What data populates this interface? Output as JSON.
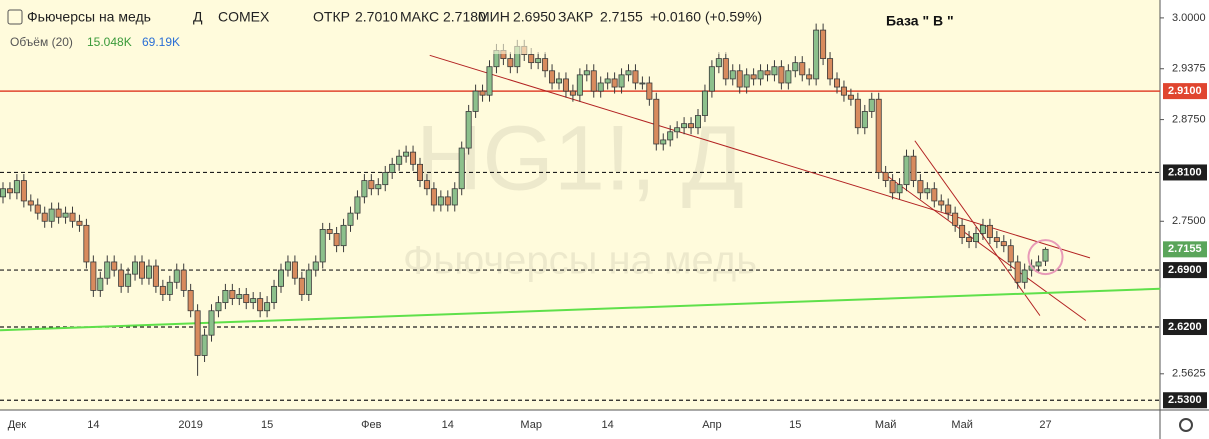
{
  "header": {
    "interval": "Д",
    "exchange": "COMEX",
    "open_label": "ОТКР",
    "open": "2.7010",
    "high_label": "МАКС",
    "high": "2.7180",
    "low_label": "МИН",
    "low": "2.6950",
    "close_label": "ЗАКР",
    "close": "2.7155",
    "change": "+0.0160 (+0.59%)",
    "volume_label": "Объём (20)",
    "volume": "15.048K",
    "volume_ma": "69.19K"
  },
  "chart_data": {
    "type": "candlestick",
    "title": "Фьючерсы на медь",
    "watermark": "HG1!, Д",
    "annotation": "База \" В \"",
    "categories": [
      null,
      null,
      "Дек",
      null,
      null,
      null,
      null,
      null,
      null,
      null,
      null,
      null,
      null,
      "14",
      null,
      null,
      null,
      null,
      null,
      null,
      null,
      null,
      null,
      null,
      null,
      null,
      null,
      "2019",
      null,
      null,
      null,
      null,
      null,
      null,
      null,
      null,
      null,
      null,
      "15",
      null,
      null,
      null,
      null,
      null,
      null,
      null,
      null,
      null,
      null,
      null,
      null,
      null,
      null,
      "Фев",
      null,
      null,
      null,
      null,
      null,
      null,
      null,
      null,
      null,
      null,
      "14",
      null,
      null,
      null,
      null,
      null,
      null,
      null,
      null,
      null,
      null,
      null,
      "Мар",
      null,
      null,
      null,
      null,
      null,
      null,
      null,
      null,
      null,
      null,
      "14",
      null,
      null,
      null,
      null,
      null,
      null,
      null,
      null,
      null,
      null,
      null,
      null,
      null,
      null,
      "Апр",
      null,
      null,
      null,
      null,
      null,
      null,
      null,
      null,
      null,
      null,
      null,
      "15",
      null,
      null,
      null,
      null,
      null,
      null,
      null,
      null,
      null,
      null,
      null,
      null,
      "Май",
      null,
      null,
      null,
      null,
      null,
      null,
      null,
      null,
      null,
      null,
      "Май",
      null,
      null,
      null,
      null,
      null,
      null,
      null,
      null,
      null,
      null,
      null,
      "27"
    ],
    "open": [
      2.78,
      2.79,
      2.785,
      2.8,
      2.775,
      2.77,
      2.76,
      2.75,
      2.765,
      2.755,
      2.76,
      2.75,
      2.745,
      2.7,
      2.665,
      2.68,
      2.7,
      2.69,
      2.67,
      2.685,
      2.7,
      2.68,
      2.695,
      2.67,
      2.66,
      2.675,
      2.69,
      2.665,
      2.64,
      2.585,
      2.61,
      2.64,
      2.65,
      2.665,
      2.655,
      2.66,
      2.65,
      2.655,
      2.64,
      2.65,
      2.67,
      2.69,
      2.7,
      2.68,
      2.66,
      2.69,
      2.7,
      2.74,
      2.735,
      2.72,
      2.745,
      2.76,
      2.78,
      2.8,
      2.79,
      2.795,
      2.81,
      2.82,
      2.83,
      2.835,
      2.82,
      2.8,
      2.79,
      2.77,
      2.78,
      2.77,
      2.79,
      2.84,
      2.885,
      2.91,
      2.905,
      2.94,
      2.96,
      2.95,
      2.94,
      2.965,
      2.955,
      2.945,
      2.95,
      2.935,
      2.92,
      2.925,
      2.91,
      2.905,
      2.93,
      2.935,
      2.91,
      2.92,
      2.925,
      2.915,
      2.93,
      2.935,
      2.92,
      2.92,
      2.9,
      2.845,
      2.85,
      2.86,
      2.865,
      2.87,
      2.865,
      2.88,
      2.91,
      2.94,
      2.95,
      2.925,
      2.935,
      2.915,
      2.93,
      2.925,
      2.935,
      2.93,
      2.94,
      2.92,
      2.935,
      2.945,
      2.93,
      2.925,
      2.985,
      2.95,
      2.925,
      2.915,
      2.905,
      2.9,
      2.865,
      2.885,
      2.9,
      2.81,
      2.8,
      2.785,
      2.795,
      2.83,
      2.8,
      2.785,
      2.79,
      2.775,
      2.77,
      2.76,
      2.745,
      2.73,
      2.725,
      2.735,
      2.745,
      2.73,
      2.725,
      2.72,
      2.7,
      2.675,
      2.69,
      2.695,
      2.701
    ],
    "high": [
      2.798,
      2.798,
      2.808,
      2.808,
      2.783,
      2.778,
      2.768,
      2.773,
      2.773,
      2.768,
      2.768,
      2.758,
      2.753,
      2.708,
      2.688,
      2.708,
      2.708,
      2.698,
      2.693,
      2.708,
      2.708,
      2.703,
      2.703,
      2.678,
      2.683,
      2.698,
      2.698,
      2.673,
      2.648,
      2.618,
      2.648,
      2.658,
      2.673,
      2.673,
      2.668,
      2.668,
      2.663,
      2.663,
      2.658,
      2.678,
      2.698,
      2.708,
      2.708,
      2.688,
      2.698,
      2.708,
      2.748,
      2.748,
      2.743,
      2.753,
      2.768,
      2.788,
      2.808,
      2.808,
      2.803,
      2.818,
      2.828,
      2.838,
      2.843,
      2.843,
      2.828,
      2.808,
      2.798,
      2.788,
      2.788,
      2.798,
      2.848,
      2.893,
      2.918,
      2.918,
      2.948,
      2.968,
      2.968,
      2.958,
      2.973,
      2.973,
      2.963,
      2.958,
      2.958,
      2.943,
      2.933,
      2.933,
      2.918,
      2.938,
      2.943,
      2.943,
      2.928,
      2.933,
      2.933,
      2.938,
      2.943,
      2.943,
      2.928,
      2.928,
      2.908,
      2.858,
      2.868,
      2.873,
      2.878,
      2.878,
      2.888,
      2.918,
      2.948,
      2.958,
      2.958,
      2.943,
      2.943,
      2.938,
      2.938,
      2.943,
      2.943,
      2.948,
      2.948,
      2.943,
      2.953,
      2.953,
      2.938,
      2.993,
      2.993,
      2.958,
      2.933,
      2.923,
      2.913,
      2.908,
      2.893,
      2.908,
      2.908,
      2.818,
      2.808,
      2.803,
      2.838,
      2.838,
      2.808,
      2.798,
      2.798,
      2.783,
      2.778,
      2.768,
      2.753,
      2.738,
      2.743,
      2.753,
      2.753,
      2.738,
      2.733,
      2.728,
      2.708,
      2.698,
      2.703,
      2.708,
      2.718
    ],
    "low": [
      2.772,
      2.777,
      2.777,
      2.767,
      2.762,
      2.752,
      2.742,
      2.742,
      2.747,
      2.747,
      2.742,
      2.737,
      2.692,
      2.657,
      2.657,
      2.672,
      2.682,
      2.662,
      2.662,
      2.677,
      2.672,
      2.672,
      2.662,
      2.652,
      2.652,
      2.667,
      2.657,
      2.632,
      2.56,
      2.577,
      2.602,
      2.632,
      2.642,
      2.647,
      2.647,
      2.642,
      2.642,
      2.632,
      2.632,
      2.642,
      2.662,
      2.682,
      2.672,
      2.652,
      2.652,
      2.682,
      2.692,
      2.727,
      2.712,
      2.712,
      2.737,
      2.752,
      2.772,
      2.782,
      2.782,
      2.787,
      2.802,
      2.812,
      2.822,
      2.812,
      2.792,
      2.782,
      2.762,
      2.762,
      2.762,
      2.762,
      2.782,
      2.832,
      2.877,
      2.897,
      2.897,
      2.932,
      2.942,
      2.932,
      2.932,
      2.947,
      2.937,
      2.937,
      2.927,
      2.912,
      2.912,
      2.902,
      2.897,
      2.897,
      2.922,
      2.902,
      2.902,
      2.912,
      2.907,
      2.907,
      2.922,
      2.912,
      2.912,
      2.892,
      2.837,
      2.837,
      2.842,
      2.852,
      2.857,
      2.857,
      2.857,
      2.872,
      2.902,
      2.932,
      2.917,
      2.917,
      2.907,
      2.907,
      2.917,
      2.917,
      2.922,
      2.922,
      2.912,
      2.912,
      2.927,
      2.922,
      2.917,
      2.917,
      2.942,
      2.917,
      2.907,
      2.897,
      2.892,
      2.857,
      2.857,
      2.877,
      2.802,
      2.792,
      2.777,
      2.777,
      2.787,
      2.792,
      2.777,
      2.777,
      2.767,
      2.762,
      2.752,
      2.737,
      2.722,
      2.717,
      2.717,
      2.727,
      2.722,
      2.717,
      2.712,
      2.692,
      2.667,
      2.667,
      2.682,
      2.687,
      2.695
    ],
    "close": [
      2.79,
      2.785,
      2.8,
      2.775,
      2.77,
      2.76,
      2.75,
      2.765,
      2.755,
      2.76,
      2.75,
      2.745,
      2.7,
      2.665,
      2.68,
      2.7,
      2.69,
      2.67,
      2.685,
      2.7,
      2.68,
      2.695,
      2.67,
      2.66,
      2.675,
      2.69,
      2.665,
      2.64,
      2.585,
      2.61,
      2.64,
      2.65,
      2.665,
      2.655,
      2.66,
      2.65,
      2.655,
      2.64,
      2.65,
      2.67,
      2.69,
      2.7,
      2.68,
      2.66,
      2.69,
      2.7,
      2.74,
      2.735,
      2.72,
      2.745,
      2.76,
      2.78,
      2.8,
      2.79,
      2.795,
      2.81,
      2.82,
      2.83,
      2.835,
      2.82,
      2.8,
      2.79,
      2.77,
      2.78,
      2.77,
      2.79,
      2.84,
      2.885,
      2.91,
      2.905,
      2.94,
      2.96,
      2.95,
      2.94,
      2.965,
      2.955,
      2.945,
      2.95,
      2.935,
      2.92,
      2.925,
      2.91,
      2.905,
      2.93,
      2.935,
      2.91,
      2.92,
      2.925,
      2.915,
      2.93,
      2.935,
      2.92,
      2.92,
      2.9,
      2.845,
      2.85,
      2.86,
      2.865,
      2.87,
      2.865,
      2.88,
      2.91,
      2.94,
      2.95,
      2.925,
      2.935,
      2.915,
      2.93,
      2.925,
      2.935,
      2.93,
      2.94,
      2.92,
      2.935,
      2.945,
      2.93,
      2.925,
      2.985,
      2.95,
      2.925,
      2.915,
      2.905,
      2.9,
      2.865,
      2.885,
      2.9,
      2.81,
      2.8,
      2.785,
      2.795,
      2.83,
      2.8,
      2.785,
      2.79,
      2.775,
      2.77,
      2.76,
      2.745,
      2.73,
      2.725,
      2.735,
      2.745,
      2.73,
      2.725,
      2.72,
      2.7,
      2.675,
      2.69,
      2.695,
      2.7,
      2.7155
    ],
    "up_color": "#8cc08c",
    "down_color": "#d88b5e",
    "wick_color": "#3a3a3a",
    "ylim": [
      2.518,
      3.022
    ],
    "yticks": [
      {
        "value": 3.0,
        "label": "3.0000"
      },
      {
        "value": 2.9375,
        "label": "2.9375"
      },
      {
        "value": 2.875,
        "label": "2.8750"
      },
      {
        "value": 2.75,
        "label": "2.7500"
      },
      {
        "value": 2.5625,
        "label": "2.5625"
      }
    ],
    "grid": false,
    "levels": [
      {
        "value": 2.91,
        "label": "2.9100",
        "color": "#e0452f",
        "style": "solid"
      },
      {
        "value": 2.81,
        "label": "2.8100",
        "color": "#1e1e1e",
        "style": "dashed"
      },
      {
        "value": 2.69,
        "label": "2.6900",
        "color": "#1e1e1e",
        "style": "dashed"
      },
      {
        "value": 2.62,
        "label": "2.6200",
        "color": "#1e1e1e",
        "style": "dashed"
      },
      {
        "value": 2.53,
        "label": "2.5300",
        "color": "#1e1e1e",
        "style": "dashed"
      }
    ],
    "trendlines": [
      {
        "x": [
          61.4,
          156.4
        ],
        "y": [
          2.954,
          2.705
        ],
        "color": "#b22222"
      },
      {
        "x": [
          131.2,
          149.2
        ],
        "y": [
          2.849,
          2.634
        ],
        "color": "#b22222"
      },
      {
        "x": [
          126.2,
          155.8
        ],
        "y": [
          2.812,
          2.628
        ],
        "color": "#b22222"
      },
      {
        "x": [
          -0.43,
          166.5
        ],
        "y": [
          2.616,
          2.667
        ],
        "color": "#5fe04a"
      }
    ],
    "circle": {
      "x": 150,
      "y": 2.706,
      "color": "#e89ab8"
    },
    "last_color": "#5aa55a"
  }
}
